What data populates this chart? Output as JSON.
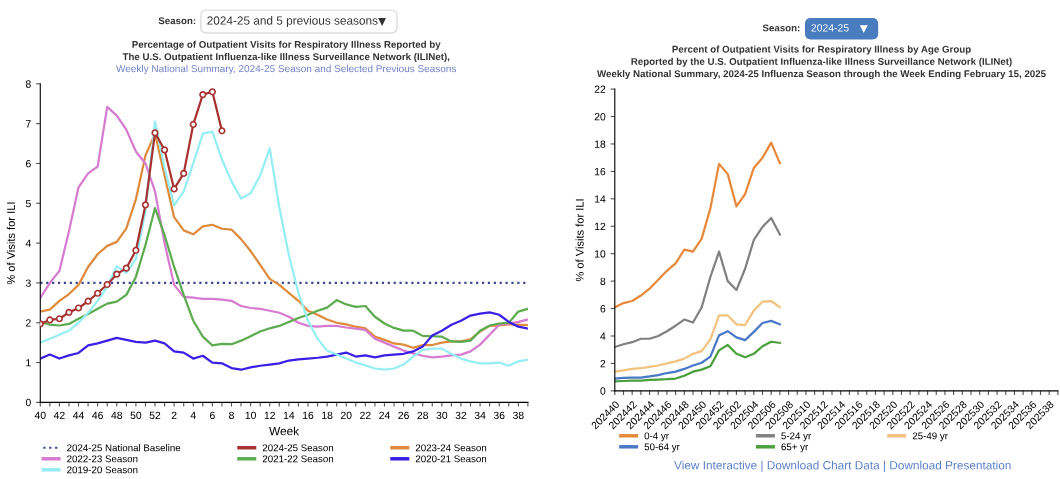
{
  "chart_data": [
    {
      "type": "line",
      "title": "Percentage of Outpatient Visits for Respiratory Illness Reported by\nThe U.S. Outpatient Influenza-like Illness Surveillance Network (ILINet),",
      "subtitle": "Weekly National Summary, 2024-25 Season and Selected Previous Seasons",
      "xlabel": "Week",
      "ylabel": "% of Visits for ILI",
      "annotations": [
        "Season:",
        "2024-25 and 5 previous seasons"
      ],
      "categories": [
        "40",
        null,
        "42",
        null,
        "44",
        null,
        "46",
        null,
        "48",
        null,
        "50",
        null,
        "52",
        null,
        "2",
        null,
        "4",
        null,
        "6",
        null,
        "8",
        null,
        "10",
        null,
        "12",
        null,
        "14",
        null,
        "16",
        null,
        "18",
        null,
        "20",
        null,
        "22",
        null,
        "24",
        null,
        "26",
        null,
        "28",
        null,
        "30",
        null,
        "32",
        null,
        "34",
        null,
        "36",
        null,
        "38",
        null
      ],
      "ylim": [
        0,
        8
      ],
      "yticks": [
        0,
        1,
        2,
        3,
        4,
        5,
        6,
        7,
        8
      ],
      "grid": false,
      "legend": "bottom",
      "ref_lines": [
        {
          "axis": "y",
          "value": 3,
          "label": "2024-25 National Baseline",
          "color": "#3a4a8c",
          "line_style": "dotted"
        }
      ],
      "series": [
        {
          "name": "2024-25 Season",
          "color": "#a83232",
          "marker": "circle",
          "values": [
            1.97,
            2.07,
            2.1,
            2.26,
            2.37,
            2.54,
            2.74,
            2.96,
            3.22,
            3.37,
            3.82,
            4.96,
            6.77,
            6.34,
            5.36,
            5.75,
            6.98,
            7.73,
            7.8,
            6.82,
            null,
            null,
            null,
            null,
            null,
            null,
            null,
            null,
            null,
            null,
            null,
            null,
            null,
            null,
            null,
            null,
            null,
            null,
            null,
            null,
            null,
            null,
            null,
            null,
            null,
            null,
            null,
            null,
            null,
            null,
            null,
            null
          ]
        },
        {
          "name": "2023-24 Season",
          "color": "#e08a3c",
          "values": [
            2.28,
            2.33,
            2.55,
            2.72,
            2.95,
            3.4,
            3.72,
            3.93,
            4.03,
            4.37,
            5.1,
            6.2,
            6.75,
            5.7,
            4.65,
            4.32,
            4.22,
            4.42,
            4.46,
            4.36,
            4.34,
            4.1,
            3.8,
            3.45,
            3.1,
            2.95,
            2.75,
            2.55,
            2.3,
            2.2,
            2.08,
            2.0,
            1.96,
            1.9,
            1.86,
            1.65,
            1.57,
            1.48,
            1.45,
            1.37,
            1.44,
            1.44,
            1.5,
            1.53,
            1.53,
            1.58,
            1.78,
            1.92,
            1.93,
            1.96,
            1.95,
            1.94
          ]
        },
        {
          "name": "2022-23 Season",
          "color": "#d67bd0",
          "values": [
            2.62,
            3.0,
            3.3,
            4.3,
            5.4,
            5.75,
            5.92,
            7.42,
            7.2,
            6.85,
            6.3,
            6.0,
            5.3,
            4.0,
            2.95,
            2.65,
            2.63,
            2.6,
            2.6,
            2.58,
            2.55,
            2.42,
            2.37,
            2.35,
            2.3,
            2.25,
            2.15,
            2.0,
            1.92,
            1.9,
            1.92,
            1.92,
            1.88,
            1.85,
            1.82,
            1.6,
            1.5,
            1.4,
            1.3,
            1.23,
            1.17,
            1.13,
            1.15,
            1.18,
            1.2,
            1.28,
            1.45,
            1.7,
            1.95,
            1.98,
            2.02,
            2.08
          ]
        },
        {
          "name": "2021-22 Season",
          "color": "#5cab4f",
          "values": [
            2.02,
            1.95,
            1.93,
            1.97,
            2.1,
            2.22,
            2.35,
            2.48,
            2.53,
            2.7,
            3.15,
            3.95,
            4.88,
            4.2,
            3.4,
            2.7,
            2.05,
            1.65,
            1.43,
            1.47,
            1.46,
            1.55,
            1.66,
            1.78,
            1.86,
            1.92,
            2.02,
            2.12,
            2.2,
            2.3,
            2.38,
            2.57,
            2.46,
            2.4,
            2.42,
            2.15,
            1.98,
            1.87,
            1.8,
            1.8,
            1.67,
            1.66,
            1.65,
            1.53,
            1.52,
            1.55,
            1.8,
            1.93,
            1.98,
            2.0,
            2.28,
            2.35
          ]
        },
        {
          "name": "2020-21 Season",
          "color": "#3a1fe6",
          "values": [
            1.1,
            1.2,
            1.1,
            1.18,
            1.24,
            1.43,
            1.48,
            1.55,
            1.62,
            1.57,
            1.52,
            1.5,
            1.55,
            1.48,
            1.28,
            1.25,
            1.1,
            1.17,
            1.0,
            0.98,
            0.86,
            0.82,
            0.88,
            0.92,
            0.95,
            0.98,
            1.05,
            1.08,
            1.1,
            1.12,
            1.15,
            1.2,
            1.25,
            1.15,
            1.18,
            1.13,
            1.18,
            1.2,
            1.22,
            1.28,
            1.4,
            1.68,
            1.8,
            1.95,
            2.05,
            2.18,
            2.23,
            2.26,
            2.2,
            2.02,
            1.9,
            1.85
          ]
        },
        {
          "name": "2019-20 Season",
          "color": "#94eef2",
          "values": [
            1.5,
            1.6,
            1.7,
            1.8,
            2.0,
            2.25,
            2.55,
            2.9,
            3.42,
            3.25,
            3.6,
            4.8,
            7.05,
            5.9,
            4.95,
            5.3,
            6.0,
            6.75,
            6.8,
            6.1,
            5.55,
            5.12,
            5.25,
            5.7,
            6.38,
            4.9,
            3.7,
            2.75,
            2.05,
            1.6,
            1.3,
            1.2,
            1.1,
            1.0,
            0.93,
            0.85,
            0.82,
            0.85,
            0.95,
            1.15,
            1.32,
            1.35,
            1.35,
            1.22,
            1.1,
            1.03,
            0.98,
            0.98,
            1.0,
            0.92,
            1.03,
            1.07
          ]
        }
      ]
    },
    {
      "type": "line",
      "title": "Percent of Outpatient Visits for Respiratory Illness by Age Group\nReported by the U.S. Outpatient Influenza-like Illness Surveillance Network (ILINet)\nWeekly National Summary, 2024-25 Influenza Season through the Week Ending February 15, 2025",
      "ylabel": "% of Visits for ILI",
      "annotations": [
        "Season:",
        "2024-25",
        "View Interactive | Download Chart Data | Download Presentation"
      ],
      "categories": [
        "202440",
        null,
        "202442",
        null,
        "202444",
        null,
        "202446",
        null,
        "202448",
        null,
        "202450",
        null,
        "202452",
        null,
        "202502",
        null,
        "202504",
        null,
        "202506",
        null,
        "202508",
        null,
        "202510",
        null,
        "202512",
        null,
        "202514",
        null,
        "202516",
        null,
        "202518",
        null,
        "202520",
        null,
        "202522",
        null,
        "202524",
        null,
        "202526",
        null,
        "202528",
        null,
        "202530",
        null,
        "202532",
        null,
        "202534",
        null,
        "202536",
        null,
        "202538",
        null
      ],
      "ylim": [
        0,
        22
      ],
      "yticks": [
        0,
        2,
        4,
        6,
        8,
        10,
        12,
        14,
        16,
        18,
        20,
        22
      ],
      "grid": false,
      "legend": "bottom",
      "series": [
        {
          "name": "0-4 yr",
          "color": "#e8883a",
          "values": [
            6.1,
            6.4,
            6.55,
            6.95,
            7.45,
            8.1,
            8.75,
            9.3,
            10.3,
            10.15,
            11.1,
            13.3,
            16.55,
            15.8,
            13.45,
            14.35,
            16.25,
            17.0,
            18.1,
            16.6,
            null,
            null,
            null,
            null,
            null,
            null,
            null,
            null,
            null,
            null,
            null,
            null,
            null,
            null,
            null,
            null,
            null,
            null,
            null,
            null,
            null,
            null,
            null,
            null,
            null,
            null,
            null,
            null,
            null,
            null,
            null,
            null
          ]
        },
        {
          "name": "5-24 yr",
          "color": "#808080",
          "values": [
            3.2,
            3.4,
            3.55,
            3.8,
            3.8,
            4.0,
            4.35,
            4.75,
            5.2,
            4.98,
            6.1,
            8.3,
            10.15,
            8.0,
            7.35,
            8.9,
            11.0,
            11.95,
            12.6,
            11.4,
            null,
            null,
            null,
            null,
            null,
            null,
            null,
            null,
            null,
            null,
            null,
            null,
            null,
            null,
            null,
            null,
            null,
            null,
            null,
            null,
            null,
            null,
            null,
            null,
            null,
            null,
            null,
            null,
            null,
            null,
            null,
            null
          ]
        },
        {
          "name": "25-49 yr",
          "color": "#f2c27e",
          "values": [
            1.4,
            1.5,
            1.6,
            1.65,
            1.75,
            1.85,
            2.0,
            2.15,
            2.35,
            2.7,
            2.9,
            3.75,
            5.5,
            5.5,
            4.85,
            4.8,
            5.85,
            6.5,
            6.55,
            6.1,
            null,
            null,
            null,
            null,
            null,
            null,
            null,
            null,
            null,
            null,
            null,
            null,
            null,
            null,
            null,
            null,
            null,
            null,
            null,
            null,
            null,
            null,
            null,
            null,
            null,
            null,
            null,
            null,
            null,
            null,
            null,
            null
          ]
        },
        {
          "name": "50-64 yr",
          "color": "#4a78c8",
          "values": [
            0.9,
            0.95,
            0.97,
            0.97,
            1.05,
            1.15,
            1.3,
            1.4,
            1.6,
            1.85,
            2.05,
            2.5,
            4.05,
            4.35,
            3.9,
            3.7,
            4.3,
            4.95,
            5.1,
            4.85,
            null,
            null,
            null,
            null,
            null,
            null,
            null,
            null,
            null,
            null,
            null,
            null,
            null,
            null,
            null,
            null,
            null,
            null,
            null,
            null,
            null,
            null,
            null,
            null,
            null,
            null,
            null,
            null,
            null,
            null,
            null,
            null
          ]
        },
        {
          "name": "65+ yr",
          "color": "#4aa03a",
          "values": [
            0.7,
            0.72,
            0.75,
            0.75,
            0.8,
            0.82,
            0.85,
            0.9,
            1.1,
            1.4,
            1.55,
            1.8,
            2.95,
            3.35,
            2.7,
            2.45,
            2.7,
            3.25,
            3.58,
            3.5,
            null,
            null,
            null,
            null,
            null,
            null,
            null,
            null,
            null,
            null,
            null,
            null,
            null,
            null,
            null,
            null,
            null,
            null,
            null,
            null,
            null,
            null,
            null,
            null,
            null,
            null,
            null,
            null,
            null,
            null,
            null,
            null
          ]
        }
      ]
    }
  ]
}
